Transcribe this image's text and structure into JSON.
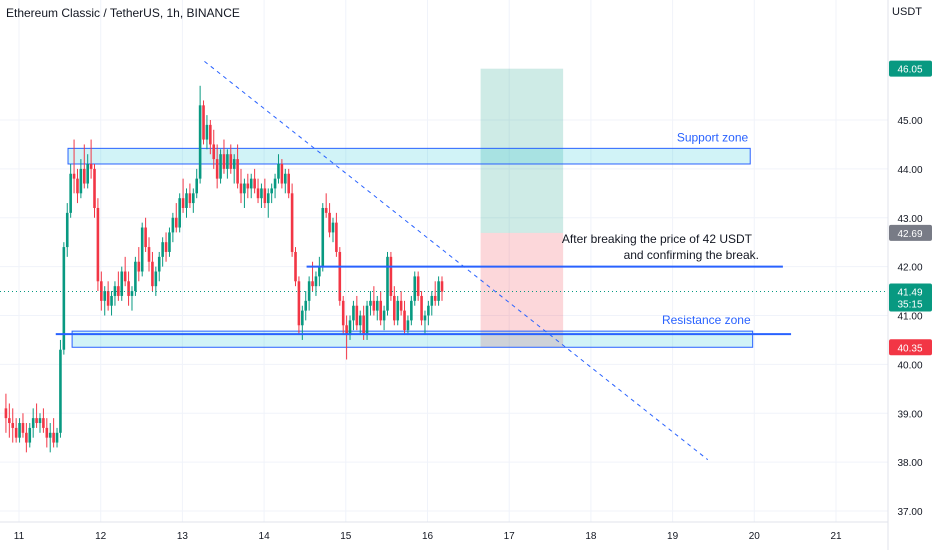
{
  "header": {
    "symbol_title": "Ethereum Classic / TetherUS, 1h, BINANCE",
    "currency": "USDT"
  },
  "chart_data": {
    "type": "candlestick",
    "xlabel": "",
    "ylabel": "",
    "ylim": [
      36.9,
      47.2
    ],
    "xlim": [
      10.84,
      21.5
    ],
    "y_ticks": [
      "37.00",
      "38.00",
      "39.00",
      "40.00",
      "41.00",
      "42.00",
      "43.00",
      "44.00",
      "45.00"
    ],
    "x_ticks": [
      "11",
      "12",
      "13",
      "14",
      "15",
      "16",
      "17",
      "18",
      "19",
      "20",
      "21"
    ],
    "price_tags": [
      {
        "name": "target",
        "value": 46.05,
        "label": "46.05",
        "color": "#089981"
      },
      {
        "name": "entry",
        "value": 42.69,
        "label": "42.69",
        "color": "#787b86"
      },
      {
        "name": "last",
        "value": 41.49,
        "label": "41.49",
        "sublabel": "35:15",
        "color": "#089981"
      },
      {
        "name": "stop",
        "value": 40.35,
        "label": "40.35",
        "color": "#f23645"
      }
    ],
    "last_price": 41.49,
    "zones": [
      {
        "name": "Support zone",
        "day_from": 11.6,
        "day_to": 19.95,
        "low": 44.1,
        "high": 44.42
      },
      {
        "name": "Resistance zone",
        "day_from": 11.65,
        "day_to": 19.98,
        "low": 40.35,
        "high": 40.68
      }
    ],
    "horizontal_lines": [
      {
        "name": "resistance-line",
        "day_from": 11.45,
        "day_to": 20.45,
        "price": 40.62
      },
      {
        "name": "break-level",
        "day_from": 14.52,
        "day_to": 20.35,
        "price": 42.0
      }
    ],
    "trendline": {
      "from": [
        13.27,
        46.2
      ],
      "to": [
        19.43,
        38.05
      ]
    },
    "position": {
      "day_from": 16.65,
      "day_to": 17.66,
      "target": 46.05,
      "entry": 42.69,
      "stop": 40.35
    },
    "annotation": {
      "line1": "After breaking the price of  42 USDT",
      "line2": "and confirming the break."
    },
    "candles_anchor": {
      "day_start": 10.84,
      "step_days": 0.0417
    },
    "candles": [
      [
        39.1,
        39.4,
        38.6,
        38.9
      ],
      [
        38.9,
        39.2,
        38.5,
        38.8
      ],
      [
        38.8,
        39.1,
        38.4,
        38.7
      ],
      [
        38.7,
        38.9,
        38.4,
        38.5
      ],
      [
        38.5,
        38.9,
        38.4,
        38.8
      ],
      [
        38.8,
        39.0,
        38.5,
        38.6
      ],
      [
        38.6,
        38.8,
        38.2,
        38.4
      ],
      [
        38.4,
        38.8,
        38.3,
        38.7
      ],
      [
        38.7,
        39.1,
        38.5,
        38.9
      ],
      [
        38.9,
        39.2,
        38.7,
        38.8
      ],
      [
        38.8,
        39.0,
        38.6,
        38.9
      ],
      [
        38.9,
        39.1,
        38.6,
        38.7
      ],
      [
        38.7,
        38.9,
        38.3,
        38.5
      ],
      [
        38.5,
        38.8,
        38.2,
        38.6
      ],
      [
        38.6,
        38.9,
        38.3,
        38.4
      ],
      [
        38.4,
        38.7,
        38.3,
        38.6
      ],
      [
        38.6,
        40.5,
        38.5,
        40.3
      ],
      [
        40.3,
        42.5,
        40.2,
        42.4
      ],
      [
        42.4,
        43.3,
        42.2,
        43.1
      ],
      [
        43.1,
        44.1,
        43.0,
        43.9
      ],
      [
        43.9,
        44.6,
        43.5,
        43.8
      ],
      [
        43.8,
        44.0,
        43.3,
        43.5
      ],
      [
        43.5,
        44.2,
        43.4,
        44.0
      ],
      [
        44.0,
        44.5,
        43.6,
        43.7
      ],
      [
        43.7,
        44.3,
        43.6,
        44.1
      ],
      [
        44.1,
        44.6,
        43.8,
        44.0
      ],
      [
        44.0,
        44.1,
        43.0,
        43.2
      ],
      [
        43.2,
        43.4,
        41.5,
        41.7
      ],
      [
        41.7,
        41.9,
        41.1,
        41.3
      ],
      [
        41.3,
        41.6,
        41.0,
        41.5
      ],
      [
        41.5,
        41.7,
        41.1,
        41.2
      ],
      [
        41.2,
        41.5,
        41.0,
        41.4
      ],
      [
        41.4,
        41.7,
        41.2,
        41.6
      ],
      [
        41.6,
        41.9,
        41.3,
        41.4
      ],
      [
        41.4,
        42.0,
        41.3,
        41.9
      ],
      [
        41.9,
        42.2,
        41.6,
        41.7
      ],
      [
        41.7,
        41.9,
        41.2,
        41.4
      ],
      [
        41.4,
        41.6,
        41.1,
        41.5
      ],
      [
        41.5,
        42.2,
        41.4,
        42.1
      ],
      [
        42.1,
        42.4,
        41.7,
        41.9
      ],
      [
        41.9,
        42.9,
        41.8,
        42.8
      ],
      [
        42.8,
        43.0,
        42.3,
        42.4
      ],
      [
        42.4,
        42.6,
        41.9,
        42.1
      ],
      [
        42.1,
        42.3,
        41.5,
        41.6
      ],
      [
        41.6,
        42.0,
        41.4,
        41.9
      ],
      [
        41.9,
        42.3,
        41.7,
        42.2
      ],
      [
        42.2,
        42.6,
        42.0,
        42.5
      ],
      [
        42.5,
        42.7,
        42.1,
        42.3
      ],
      [
        42.3,
        42.8,
        42.2,
        42.7
      ],
      [
        42.7,
        43.1,
        42.5,
        43.0
      ],
      [
        43.0,
        43.3,
        42.7,
        42.8
      ],
      [
        42.8,
        43.5,
        42.7,
        43.4
      ],
      [
        43.4,
        43.8,
        43.1,
        43.2
      ],
      [
        43.2,
        43.6,
        43.0,
        43.5
      ],
      [
        43.5,
        43.7,
        43.2,
        43.3
      ],
      [
        43.3,
        43.6,
        43.1,
        43.5
      ],
      [
        43.5,
        44.0,
        43.4,
        43.8
      ],
      [
        43.8,
        45.7,
        43.7,
        45.3
      ],
      [
        45.3,
        45.4,
        44.5,
        44.6
      ],
      [
        44.6,
        45.1,
        44.4,
        44.9
      ],
      [
        44.9,
        45.0,
        44.3,
        44.5
      ],
      [
        44.5,
        44.8,
        44.0,
        44.2
      ],
      [
        44.2,
        44.5,
        43.6,
        43.8
      ],
      [
        43.8,
        44.4,
        43.7,
        44.3
      ],
      [
        44.3,
        44.6,
        43.9,
        44.0
      ],
      [
        44.0,
        44.4,
        43.8,
        44.3
      ],
      [
        44.3,
        44.5,
        43.9,
        44.0
      ],
      [
        44.0,
        44.3,
        43.7,
        44.2
      ],
      [
        44.2,
        44.5,
        43.6,
        43.7
      ],
      [
        43.7,
        44.0,
        43.3,
        43.5
      ],
      [
        43.5,
        43.8,
        43.2,
        43.7
      ],
      [
        43.7,
        43.9,
        43.4,
        43.6
      ],
      [
        43.6,
        43.9,
        43.4,
        43.8
      ],
      [
        43.8,
        44.0,
        43.5,
        43.6
      ],
      [
        43.6,
        43.8,
        43.3,
        43.4
      ],
      [
        43.4,
        43.7,
        43.2,
        43.6
      ],
      [
        43.6,
        43.8,
        43.2,
        43.3
      ],
      [
        43.3,
        43.6,
        43.0,
        43.5
      ],
      [
        43.5,
        43.7,
        43.3,
        43.6
      ],
      [
        43.6,
        43.9,
        43.4,
        43.8
      ],
      [
        43.8,
        44.3,
        43.7,
        44.1
      ],
      [
        44.1,
        44.2,
        43.6,
        43.7
      ],
      [
        43.7,
        44.0,
        43.5,
        43.9
      ],
      [
        43.9,
        44.0,
        43.4,
        43.5
      ],
      [
        43.5,
        43.7,
        42.2,
        42.3
      ],
      [
        42.3,
        42.4,
        41.6,
        41.7
      ],
      [
        41.7,
        41.8,
        40.6,
        40.8
      ],
      [
        40.8,
        41.2,
        40.5,
        41.1
      ],
      [
        41.1,
        41.5,
        40.9,
        41.3
      ],
      [
        41.3,
        41.8,
        41.1,
        41.7
      ],
      [
        41.7,
        42.1,
        41.5,
        41.6
      ],
      [
        41.6,
        41.9,
        41.4,
        41.8
      ],
      [
        41.8,
        42.2,
        41.6,
        42.0
      ],
      [
        42.0,
        43.3,
        41.9,
        43.2
      ],
      [
        43.2,
        43.5,
        43.0,
        43.1
      ],
      [
        43.1,
        43.3,
        42.6,
        42.7
      ],
      [
        42.7,
        43.0,
        42.5,
        42.9
      ],
      [
        42.9,
        43.1,
        42.2,
        42.3
      ],
      [
        42.3,
        42.4,
        41.2,
        41.3
      ],
      [
        41.3,
        41.4,
        40.6,
        40.8
      ],
      [
        40.8,
        41.0,
        40.1,
        40.6
      ],
      [
        40.6,
        41.0,
        40.5,
        40.9
      ],
      [
        40.9,
        41.3,
        40.7,
        41.2
      ],
      [
        41.2,
        41.4,
        40.7,
        40.8
      ],
      [
        40.8,
        41.1,
        40.6,
        41.0
      ],
      [
        41.0,
        41.2,
        40.5,
        40.6
      ],
      [
        40.6,
        41.3,
        40.5,
        41.2
      ],
      [
        41.2,
        41.5,
        41.0,
        41.3
      ],
      [
        41.3,
        41.6,
        41.0,
        41.1
      ],
      [
        41.1,
        41.4,
        40.9,
        41.3
      ],
      [
        41.3,
        41.5,
        40.8,
        40.9
      ],
      [
        40.9,
        41.2,
        40.7,
        41.1
      ],
      [
        41.1,
        42.3,
        41.0,
        42.2
      ],
      [
        42.2,
        42.3,
        41.3,
        41.4
      ],
      [
        41.4,
        41.6,
        40.8,
        40.9
      ],
      [
        40.9,
        41.4,
        40.8,
        41.3
      ],
      [
        41.3,
        41.5,
        41.0,
        41.1
      ],
      [
        41.1,
        41.3,
        40.6,
        40.7
      ],
      [
        40.7,
        41.0,
        40.6,
        40.9
      ],
      [
        40.9,
        41.4,
        40.8,
        41.3
      ],
      [
        41.3,
        41.9,
        41.2,
        41.8
      ],
      [
        41.8,
        41.9,
        41.3,
        41.4
      ],
      [
        41.4,
        41.5,
        40.8,
        40.9
      ],
      [
        40.9,
        41.1,
        40.6,
        41.0
      ],
      [
        41.0,
        41.3,
        40.8,
        41.2
      ],
      [
        41.2,
        41.5,
        41.0,
        41.4
      ],
      [
        41.4,
        41.7,
        41.2,
        41.3
      ],
      [
        41.3,
        41.8,
        41.2,
        41.7
      ],
      [
        41.7,
        41.8,
        41.3,
        41.49
      ]
    ]
  }
}
